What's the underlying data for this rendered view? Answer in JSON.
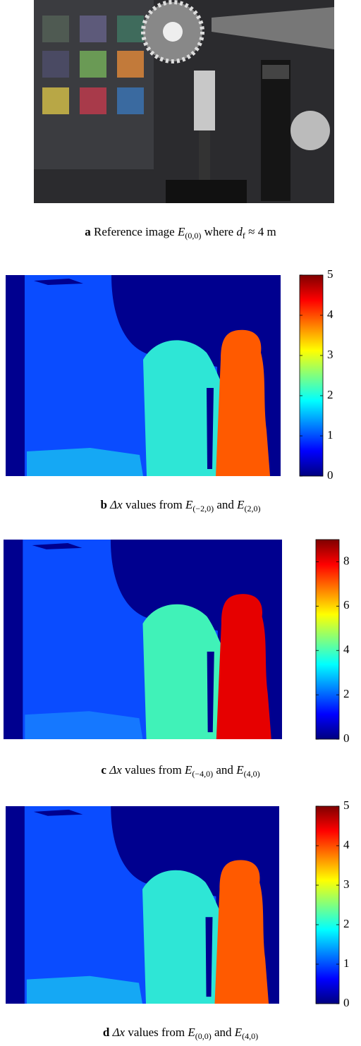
{
  "panels": [
    {
      "caption": {
        "label": "a",
        "parts": [
          "Reference image ",
          "E",
          "(0,0)",
          " where ",
          "d",
          "f",
          " ≈ 4 m"
        ]
      }
    },
    {
      "caption": {
        "label": "b",
        "parts": [
          "Δx",
          " values from ",
          "E",
          "(−2,0)",
          " and ",
          "E",
          "(2,0)"
        ]
      },
      "colorbar": {
        "lim": [
          0,
          5
        ],
        "ticks": [
          0,
          1,
          2,
          3,
          4,
          5
        ]
      }
    },
    {
      "caption": {
        "label": "c",
        "parts": [
          "Δx",
          " values from ",
          "E",
          "(−4,0)",
          " and ",
          "E",
          "(4,0)"
        ]
      },
      "colorbar": {
        "lim": [
          0,
          9
        ],
        "ticks": [
          0,
          2,
          4,
          6,
          8
        ]
      }
    },
    {
      "caption": {
        "label": "d",
        "parts": [
          "Δx",
          " values from ",
          "E",
          "(0,0)",
          " and ",
          "E",
          "(4,0)"
        ]
      },
      "colorbar": {
        "lim": [
          0,
          5
        ],
        "ticks": [
          0,
          1,
          2,
          3,
          4,
          5
        ]
      }
    }
  ]
}
